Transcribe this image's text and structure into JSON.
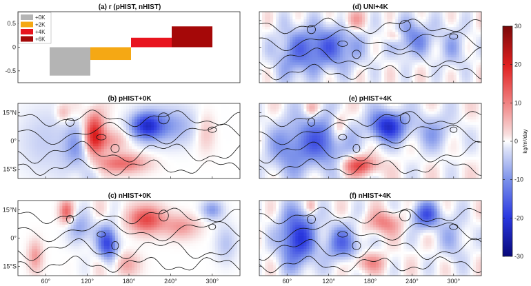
{
  "chart_data": [
    {
      "id": "a",
      "type": "bar",
      "title": "(a) r (pHIST, nHIST)",
      "categories": [
        "+0K",
        "+2K",
        "+4K",
        "+6K"
      ],
      "values": [
        -0.6,
        -0.27,
        0.2,
        0.44
      ],
      "colors": [
        "#b4b4b4",
        "#f5a814",
        "#e8141e",
        "#a50808"
      ],
      "ylim": [
        -0.75,
        0.75
      ],
      "yticks": [
        -0.5,
        0,
        0.5
      ],
      "ytick_labels": [
        "-0.5",
        "0",
        "0.5"
      ],
      "legend": [
        "+0K",
        "+2K",
        "+4K",
        "+6K"
      ],
      "legend_position": "top-left",
      "xlabel": "",
      "ylabel": ""
    },
    {
      "id": "b",
      "type": "heatmap",
      "title": "(b) pHIST+0K",
      "ytick_labels": [
        "15°N",
        "0°",
        "15°S"
      ],
      "xtick_labels": [],
      "pattern": "pHIST0"
    },
    {
      "id": "c",
      "type": "heatmap",
      "title": "(c) nHIST+0K",
      "ytick_labels": [
        "15°N",
        "0°",
        "15°S"
      ],
      "xtick_labels": [
        "60°",
        "120°",
        "180°",
        "240°",
        "300°"
      ],
      "pattern": "nHIST0"
    },
    {
      "id": "d",
      "type": "heatmap",
      "title": "(d) UNI+4K",
      "ytick_labels": [],
      "xtick_labels": [],
      "pattern": "UNI4"
    },
    {
      "id": "e",
      "type": "heatmap",
      "title": "(e) pHIST+4K",
      "ytick_labels": [],
      "xtick_labels": [],
      "pattern": "pHIST4"
    },
    {
      "id": "f",
      "type": "heatmap",
      "title": "(f) nHIST+4K",
      "ytick_labels": [],
      "xtick_labels": [
        "60°",
        "120°",
        "180°",
        "240°",
        "300°"
      ],
      "pattern": "nHIST4"
    }
  ],
  "colorbar": {
    "range": [
      -30,
      30
    ],
    "ticks": [
      30,
      20,
      10,
      0,
      -10,
      -20,
      -30
    ],
    "tick_labels": [
      "30",
      "20",
      "10",
      "0",
      "-10",
      "-20",
      "-30"
    ],
    "unit_label": "kg/m²/day",
    "colormap": "blue-white-red"
  }
}
